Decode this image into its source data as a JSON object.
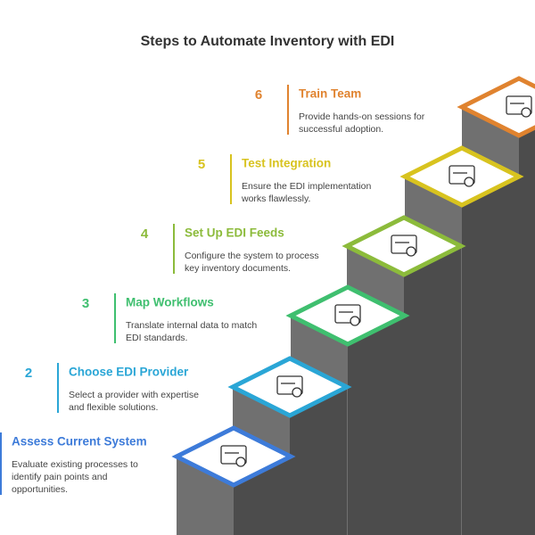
{
  "title": "Steps to Automate Inventory with EDI",
  "steps": [
    {
      "title": "Assess Current System",
      "description": [
        "Evaluate existing processes to",
        "identify pain points and",
        "opportunities."
      ]
    },
    {
      "number": "2",
      "title": "Choose EDI Provider",
      "description": [
        "Select a provider with expertise",
        "and flexible solutions."
      ]
    },
    {
      "number": "3",
      "title": "Map Workflows",
      "description": [
        "Translate internal data to match",
        "EDI standards."
      ]
    },
    {
      "number": "4",
      "title": "Set Up EDI Feeds",
      "description": [
        "Configure the system to process",
        "key inventory documents."
      ]
    },
    {
      "number": "5",
      "title": "Test Integration",
      "description": [
        "Ensure the EDI implementation",
        "works flawlessly."
      ]
    },
    {
      "number": "6",
      "title": "Train Team",
      "description": [
        "Provide hands-on sessions for",
        "successful adoption."
      ]
    }
  ]
}
